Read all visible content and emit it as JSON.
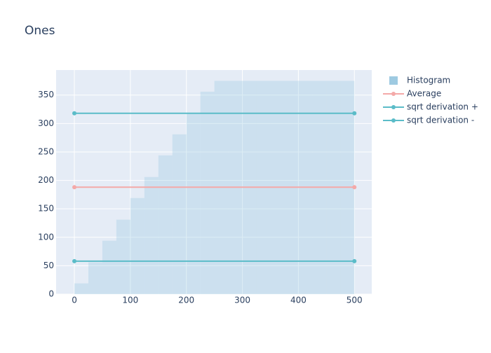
{
  "chart_data": {
    "type": "combo",
    "title": "Ones",
    "series": [
      {
        "name": "Histogram",
        "type": "histogram",
        "color": "#9ecae1",
        "bins": [
          0,
          25,
          50,
          75,
          100,
          125,
          150,
          175,
          200,
          225,
          250,
          275,
          300,
          325,
          350,
          375,
          400,
          425,
          450,
          475,
          500
        ],
        "values": [
          19,
          56,
          94,
          131,
          169,
          206,
          244,
          281,
          319,
          356,
          375,
          375,
          375,
          375,
          375,
          375,
          375,
          375,
          375,
          375
        ]
      },
      {
        "name": "Average",
        "type": "line",
        "color": "#f4a9a8",
        "x": [
          0,
          500
        ],
        "values": [
          188,
          188
        ]
      },
      {
        "name": "sqrt derivation +",
        "type": "line",
        "color": "#5bbcc8",
        "x": [
          0,
          500
        ],
        "values": [
          318,
          318
        ]
      },
      {
        "name": "sqrt derivation -",
        "type": "line",
        "color": "#5bbcc8",
        "x": [
          0,
          500
        ],
        "values": [
          58,
          58
        ]
      }
    ],
    "xlim": [
      -32.6,
      531
    ],
    "ylim": [
      0,
      394
    ],
    "xticks": [
      0,
      100,
      200,
      300,
      400,
      500
    ],
    "yticks": [
      0,
      50,
      100,
      150,
      200,
      250,
      300,
      350
    ],
    "grid": true
  }
}
